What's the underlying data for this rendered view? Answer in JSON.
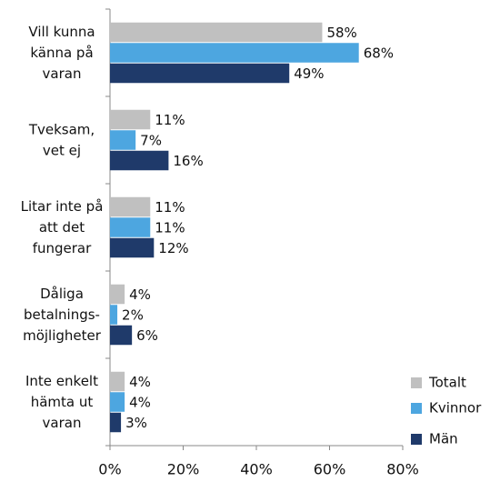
{
  "chart_data": {
    "type": "bar",
    "orientation": "horizontal",
    "categories": [
      "Vill kunna\nkänna på\nvaran",
      "Tveksam,\nvet ej",
      "Litar inte på\natt det\nfungerar",
      "Dåliga\nbetalnings-\nmöjligheter",
      "Inte enkelt\nhämta ut\nvaran"
    ],
    "series": [
      {
        "name": "Totalt",
        "color": "#c0c0c0",
        "values": [
          58,
          11,
          11,
          4,
          4
        ],
        "value_labels": [
          "58%",
          "11%",
          "11%",
          "4%",
          "4%"
        ]
      },
      {
        "name": "Kvinnor",
        "color": "#4da6e0",
        "values": [
          68,
          7,
          11,
          2,
          4
        ],
        "value_labels": [
          "68%",
          "7%",
          "11%",
          "2%",
          "4%"
        ]
      },
      {
        "name": "Män",
        "color": "#1f3a6a",
        "values": [
          49,
          16,
          12,
          6,
          3
        ],
        "value_labels": [
          "49%",
          "16%",
          "12%",
          "6%",
          "3%"
        ]
      }
    ],
    "xlim": [
      0,
      80
    ],
    "xticks": [
      {
        "value": 0,
        "label": "0%"
      },
      {
        "value": 20,
        "label": "20%"
      },
      {
        "value": 40,
        "label": "40%"
      },
      {
        "value": 60,
        "label": "60%"
      },
      {
        "value": 80,
        "label": "80%"
      }
    ],
    "legend": "lower right"
  }
}
